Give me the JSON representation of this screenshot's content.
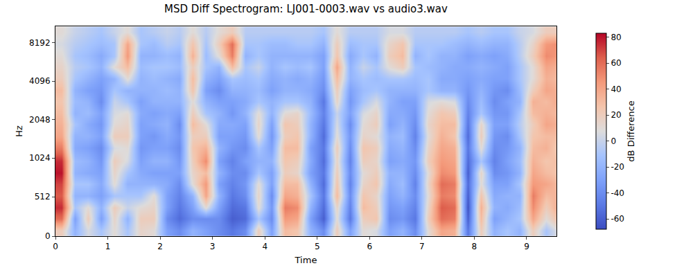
{
  "chart_data": {
    "type": "heatmap",
    "title": "MSD Diff Spectrogram: LJ001-0003.wav vs audio3.wav",
    "x_label": "Time",
    "y_label": "Hz",
    "colorbar_title": "dB Difference",
    "xlim": [
      0,
      9.57
    ],
    "xticks": [
      0,
      1,
      2,
      3,
      4,
      5,
      6,
      7,
      8,
      9
    ],
    "ylim": [
      0,
      11025
    ],
    "yticks": [
      0,
      512,
      1024,
      2048,
      4096,
      8192
    ],
    "zlim": [
      -68,
      83
    ],
    "zticks": [
      -60,
      -40,
      -20,
      0,
      20,
      40,
      60,
      80
    ],
    "x": [
      0.125,
      0.375,
      0.625,
      0.875,
      1.125,
      1.375,
      1.625,
      1.875,
      2.125,
      2.375,
      2.625,
      2.875,
      3.125,
      3.375,
      3.625,
      3.875,
      4.125,
      4.375,
      4.625,
      4.875,
      5.125,
      5.375,
      5.625,
      5.875,
      6.125,
      6.375,
      6.625,
      6.875,
      7.125,
      7.375,
      7.625,
      7.875,
      8.125,
      8.375,
      8.625,
      8.875,
      9.125,
      9.375,
      9.625
    ],
    "y": [
      75,
      225,
      375,
      525,
      675,
      825,
      975,
      1231,
      1516,
      1866,
      2297,
      2828,
      3482,
      4287,
      5278,
      6498,
      8000,
      9849
    ],
    "z": [
      [
        20,
        60,
        75,
        65,
        70,
        80,
        75,
        55,
        40,
        35,
        30,
        25,
        30,
        20,
        15,
        10,
        5,
        10
      ],
      [
        -20,
        -30,
        -10,
        -20,
        -10,
        -20,
        -15,
        -25,
        -20,
        -10,
        -20,
        -15,
        -20,
        -10,
        -5,
        -10,
        -5,
        0
      ],
      [
        5,
        20,
        10,
        -20,
        -10,
        -25,
        -20,
        -30,
        -20,
        -25,
        -15,
        -20,
        -30,
        -20,
        -10,
        -15,
        -10,
        -5
      ],
      [
        -10,
        -30,
        -20,
        -30,
        -25,
        -30,
        -35,
        -40,
        -30,
        -35,
        -30,
        -40,
        -35,
        -30,
        -20,
        -25,
        -15,
        -10
      ],
      [
        10,
        15,
        20,
        -10,
        10,
        15,
        20,
        5,
        20,
        10,
        5,
        0,
        -10,
        -20,
        10,
        -10,
        -10,
        0
      ],
      [
        -10,
        -20,
        0,
        -10,
        -20,
        -10,
        5,
        10,
        20,
        15,
        10,
        -10,
        -20,
        10,
        30,
        45,
        40,
        10
      ],
      [
        15,
        20,
        10,
        -10,
        -20,
        -25,
        -30,
        -35,
        -30,
        -30,
        -25,
        -30,
        -20,
        -20,
        -15,
        -20,
        -10,
        -10
      ],
      [
        10,
        20,
        15,
        10,
        -20,
        -30,
        -20,
        -30,
        -35,
        -25,
        -30,
        -20,
        -20,
        -15,
        -10,
        -20,
        -15,
        -5
      ],
      [
        -30,
        -40,
        -30,
        -30,
        -25,
        -30,
        -20,
        -30,
        -25,
        -20,
        -25,
        -20,
        -15,
        -20,
        -10,
        -15,
        -5,
        0
      ],
      [
        -40,
        -55,
        -50,
        -45,
        -40,
        -30,
        -35,
        -40,
        -35,
        -40,
        -30,
        -20,
        -20,
        -25,
        -15,
        -20,
        -10,
        -5
      ],
      [
        -20,
        -40,
        -30,
        -20,
        10,
        15,
        20,
        25,
        20,
        30,
        20,
        10,
        25,
        30,
        20,
        35,
        25,
        10
      ],
      [
        -30,
        -40,
        10,
        40,
        45,
        30,
        50,
        35,
        20,
        10,
        -10,
        -20,
        -30,
        -20,
        -10,
        -15,
        -10,
        -5
      ],
      [
        -40,
        -40,
        -30,
        -20,
        -30,
        -20,
        -30,
        -20,
        -30,
        -25,
        -20,
        -30,
        -40,
        -30,
        -20,
        10,
        20,
        10
      ],
      [
        -50,
        -60,
        -55,
        -50,
        -45,
        -40,
        -45,
        -35,
        -30,
        -25,
        -35,
        -30,
        -20,
        -10,
        30,
        55,
        60,
        20
      ],
      [
        -40,
        -55,
        -50,
        -40,
        -35,
        -40,
        -30,
        -40,
        -35,
        -30,
        -20,
        -25,
        -20,
        -15,
        -10,
        -20,
        -10,
        -5
      ],
      [
        20,
        -10,
        10,
        15,
        10,
        -10,
        -20,
        -10,
        10,
        15,
        10,
        -10,
        -15,
        -10,
        0,
        -10,
        -10,
        -5
      ],
      [
        -30,
        -40,
        -35,
        -40,
        -30,
        -30,
        -20,
        -30,
        -35,
        -30,
        -20,
        -20,
        -30,
        -25,
        -20,
        -20,
        -15,
        -5
      ],
      [
        30,
        45,
        55,
        40,
        30,
        20,
        25,
        30,
        20,
        25,
        10,
        -10,
        -20,
        -20,
        -10,
        -20,
        -15,
        -5
      ],
      [
        25,
        40,
        50,
        35,
        30,
        15,
        20,
        30,
        25,
        20,
        15,
        -10,
        -20,
        -25,
        -15,
        -20,
        -10,
        -5
      ],
      [
        -20,
        -30,
        -20,
        -10,
        -20,
        -30,
        -25,
        -30,
        -20,
        -20,
        -15,
        -20,
        -25,
        -20,
        -10,
        -20,
        -10,
        -5
      ],
      [
        -40,
        -60,
        -55,
        -50,
        -55,
        -50,
        -55,
        -50,
        -55,
        -50,
        -45,
        -50,
        -40,
        -35,
        -30,
        -30,
        -20,
        -10
      ],
      [
        20,
        10,
        15,
        30,
        25,
        20,
        15,
        20,
        10,
        5,
        0,
        15,
        20,
        30,
        40,
        25,
        20,
        10
      ],
      [
        -30,
        -50,
        -45,
        -40,
        -45,
        -40,
        -45,
        -40,
        -35,
        -40,
        -30,
        -35,
        -30,
        -20,
        -20,
        -25,
        -15,
        -5
      ],
      [
        10,
        20,
        30,
        25,
        15,
        10,
        20,
        25,
        15,
        10,
        5,
        -10,
        -15,
        -10,
        0,
        -10,
        -10,
        -5
      ],
      [
        5,
        25,
        20,
        15,
        25,
        20,
        15,
        20,
        10,
        20,
        15,
        5,
        -10,
        -15,
        -10,
        -20,
        -10,
        -5
      ],
      [
        -30,
        -40,
        -35,
        -30,
        -25,
        -20,
        -30,
        -25,
        -20,
        -30,
        -25,
        -20,
        -20,
        -10,
        10,
        20,
        15,
        5
      ],
      [
        -20,
        -35,
        -30,
        -20,
        -15,
        -20,
        -25,
        -20,
        -15,
        -20,
        -25,
        -30,
        -20,
        -10,
        20,
        30,
        25,
        5
      ],
      [
        -40,
        -50,
        -45,
        -40,
        -45,
        -40,
        -35,
        -40,
        -45,
        -40,
        -35,
        -30,
        -20,
        -15,
        -10,
        -20,
        -10,
        -5
      ],
      [
        10,
        20,
        15,
        10,
        15,
        10,
        20,
        15,
        10,
        15,
        10,
        5,
        -10,
        -10,
        -15,
        -10,
        -10,
        -5
      ],
      [
        40,
        60,
        65,
        55,
        60,
        50,
        45,
        40,
        35,
        30,
        25,
        10,
        -20,
        -25,
        -20,
        -20,
        -10,
        -5
      ],
      [
        35,
        55,
        60,
        50,
        55,
        45,
        40,
        35,
        25,
        30,
        20,
        5,
        -20,
        -25,
        -25,
        -20,
        -15,
        -5
      ],
      [
        -50,
        -60,
        -65,
        -60,
        -55,
        -60,
        -55,
        -50,
        -55,
        -50,
        -45,
        -40,
        -35,
        -30,
        -25,
        -30,
        -20,
        -10
      ],
      [
        20,
        30,
        35,
        25,
        10,
        15,
        -10,
        10,
        20,
        15,
        -10,
        -15,
        -20,
        -25,
        -20,
        -25,
        -15,
        -5
      ],
      [
        -20,
        -30,
        -20,
        -25,
        -30,
        -40,
        -45,
        -40,
        -35,
        -30,
        -35,
        -40,
        -35,
        -30,
        -25,
        -30,
        -20,
        -10
      ],
      [
        -10,
        -20,
        -25,
        -20,
        -30,
        -35,
        -30,
        -35,
        -40,
        -30,
        -35,
        -30,
        -40,
        -30,
        -30,
        -25,
        -20,
        -10
      ],
      [
        -20,
        -10,
        -15,
        -20,
        -10,
        -20,
        -15,
        -20,
        -10,
        -5,
        -10,
        -20,
        -15,
        -10,
        -10,
        -5,
        -5,
        0
      ],
      [
        20,
        40,
        50,
        55,
        45,
        40,
        35,
        30,
        25,
        20,
        30,
        35,
        20,
        10,
        10,
        20,
        15,
        5
      ],
      [
        -10,
        10,
        20,
        30,
        40,
        30,
        25,
        35,
        30,
        40,
        35,
        30,
        40,
        35,
        40,
        50,
        45,
        20
      ],
      [
        10,
        30,
        40,
        35,
        30,
        25,
        30,
        20,
        30,
        35,
        30,
        40,
        35,
        30,
        35,
        45,
        50,
        20
      ]
    ]
  }
}
